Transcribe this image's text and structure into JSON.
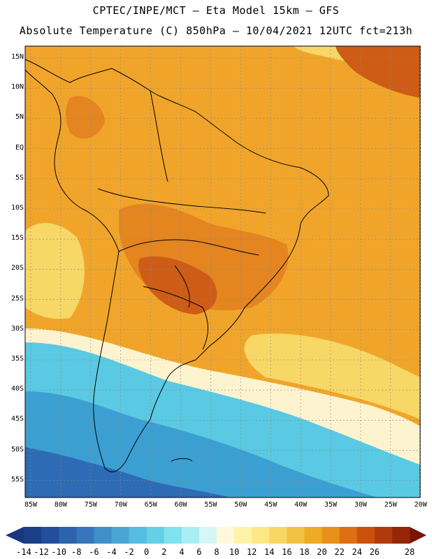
{
  "header": {
    "line1": "CPTEC/INPE/MCT –  Eta Model 15km – GFS",
    "line2": "Absolute Temperature (C) 850hPa – 10/04/2021 12UTC fct=213h"
  },
  "axes": {
    "y_labels": [
      "15N",
      "10N",
      "5N",
      "EQ",
      "5S",
      "10S",
      "15S",
      "20S",
      "25S",
      "30S",
      "35S",
      "40S",
      "45S",
      "50S",
      "55S"
    ],
    "x_labels": [
      "85W",
      "80W",
      "75W",
      "70W",
      "65W",
      "60W",
      "55W",
      "50W",
      "45W",
      "40W",
      "35W",
      "30W",
      "25W",
      "20W"
    ]
  },
  "colorbar": {
    "labels": [
      "-14",
      "-12",
      "-10",
      "-8",
      "-6",
      "-4",
      "-2",
      "0",
      "2",
      "4",
      "6",
      "8",
      "10",
      "12",
      "14",
      "16",
      "18",
      "20",
      "22",
      "24",
      "26",
      "28"
    ],
    "colors": [
      "#1b3f8a",
      "#234e9c",
      "#2c62ae",
      "#3676bd",
      "#3f8fc9",
      "#49a6d4",
      "#55bddf",
      "#64d0e8",
      "#7ee2ef",
      "#a9eef3",
      "#d6f6f6",
      "#fff8dc",
      "#fff3a8",
      "#fde886",
      "#f9d764",
      "#f3c244",
      "#eeab26",
      "#e8901a",
      "#de6f12",
      "#cb520d",
      "#b23a0a",
      "#962607"
    ],
    "under_color": "#1a3580",
    "over_color": "#7a1404"
  },
  "map": {
    "warm_color": "#f0a52a",
    "hot_color": "#e48520",
    "hottest_color": "#cf5c16",
    "mild_color": "#f7d765",
    "cool_color": "#fdf3cf",
    "cold_color": "#5ac9e3",
    "colder_color": "#3c9fd2",
    "coldest_color": "#2e6bb5"
  }
}
